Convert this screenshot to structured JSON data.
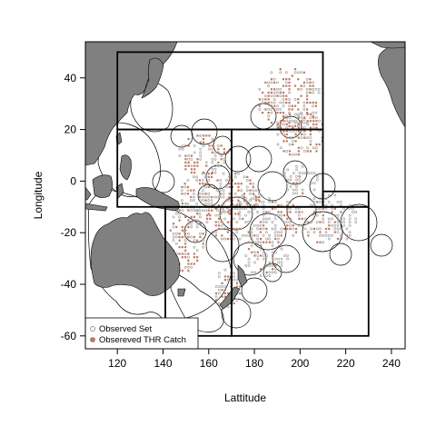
{
  "chart_data": {
    "type": "map",
    "xlabel": "Lattitude",
    "ylabel": "Longitude",
    "xlim": [
      106,
      246
    ],
    "ylim": [
      -65,
      54
    ],
    "x_ticks": [
      120,
      140,
      160,
      180,
      200,
      220,
      240
    ],
    "y_ticks": [
      -60,
      -40,
      -20,
      0,
      20,
      40
    ],
    "legend": {
      "position": "bottom-left",
      "entries": [
        {
          "label": "Observed Set",
          "color": "#9a9a9a"
        },
        {
          "label": "Obsereved THR Catch",
          "color": "#c07a60"
        }
      ]
    },
    "regions": [
      {
        "x": [
          120,
          210
        ],
        "y": [
          20,
          50
        ]
      },
      {
        "x": [
          120,
          170
        ],
        "y": [
          -10,
          20
        ]
      },
      {
        "x": [
          170,
          210
        ],
        "y": [
          -10,
          20
        ]
      },
      {
        "x": [
          210,
          230
        ],
        "y": [
          -10,
          -4
        ]
      },
      {
        "x": [
          141,
          170
        ],
        "y": [
          -60,
          -10
        ]
      },
      {
        "x": [
          170,
          230
        ],
        "y": [
          -60,
          -10
        ]
      }
    ],
    "land_color": "#808080",
    "set_color": "#9a9a9a",
    "catch_color": "#c07a60"
  }
}
